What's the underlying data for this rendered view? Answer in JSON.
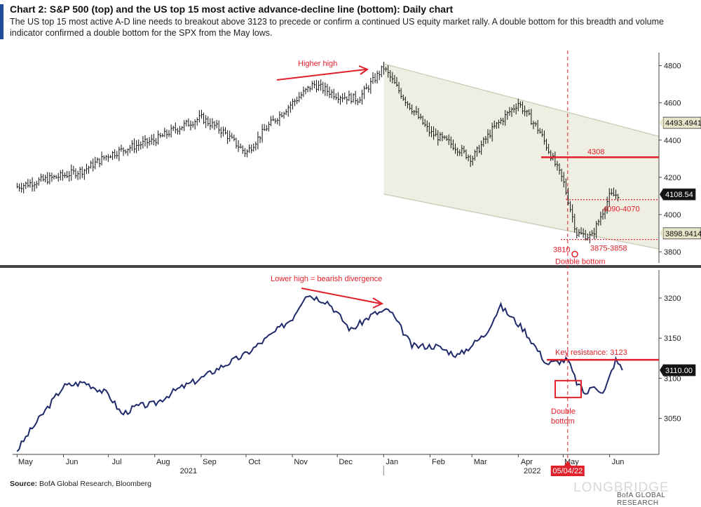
{
  "header": {
    "title": "Chart 2: S&P 500 (top) and the US top 15 most active advance-decline line (bottom): Daily chart",
    "subtitle": "The US top 15 most active A-D line needs to breakout above 3123 to precede or confirm a continued US equity market rally. A double bottom for this breadth and volume indicator confirmed a double bottom for the SPX from the May lows."
  },
  "footer": {
    "source_label": "Source:",
    "source_text": "BofA Global Research, Bloomberg",
    "brand": "BofA GLOBAL RESEARCH",
    "watermark": "LONGBRIDGE"
  },
  "colors": {
    "price_line": "#111111",
    "ad_line": "#1f2a6b",
    "annotation": "#e0202a",
    "channel_fill": "#efeee2",
    "channel_edge": "#c8c8b0",
    "divider": "#444444"
  },
  "chart_data": [
    {
      "type": "line",
      "panel": "top",
      "series_style": "ohlc-bars",
      "y_ticks": [
        3800,
        4000,
        4200,
        4400,
        4600,
        4800
      ],
      "ylim": [
        3740,
        4870
      ],
      "x_months": [
        "May",
        "Jun",
        "Jul",
        "Aug",
        "Sep",
        "Oct",
        "Nov",
        "Dec",
        "Jan",
        "Feb",
        "Mar",
        "Apr",
        "May",
        "Jun"
      ],
      "year_labels": [
        "2021",
        "2022"
      ],
      "x": [
        "2021-05-01",
        "2021-05-15",
        "2021-06-01",
        "2021-06-15",
        "2021-07-01",
        "2021-07-15",
        "2021-08-01",
        "2021-08-15",
        "2021-09-01",
        "2021-09-15",
        "2021-10-01",
        "2021-10-15",
        "2021-11-01",
        "2021-11-15",
        "2021-12-01",
        "2021-12-15",
        "2022-01-01",
        "2022-01-15",
        "2022-02-01",
        "2022-02-15",
        "2022-03-01",
        "2022-03-15",
        "2022-04-01",
        "2022-04-15",
        "2022-05-01",
        "2022-05-10",
        "2022-05-20",
        "2022-06-01",
        "2022-06-08"
      ],
      "values": [
        4150,
        4180,
        4210,
        4240,
        4320,
        4360,
        4400,
        4460,
        4520,
        4450,
        4330,
        4470,
        4600,
        4700,
        4640,
        4620,
        4790,
        4620,
        4440,
        4380,
        4300,
        4460,
        4600,
        4450,
        4180,
        3900,
        3880,
        4100,
        4110
      ],
      "value_labels": {
        "current": "4108.54",
        "channel_upper": "4493.4941",
        "channel_lower": "3898.9414"
      },
      "annotations": {
        "higher_high": "Higher high",
        "level_4308": "4308",
        "zone_4090": "4090-4070",
        "zone_3875": "3875-3858",
        "level_3810": "3810",
        "double_bottom": "Double bottom"
      }
    },
    {
      "type": "line",
      "panel": "bottom",
      "y_ticks": [
        3050,
        3100,
        3150,
        3200
      ],
      "ylim": [
        3005,
        3235
      ],
      "x": [
        "2021-05-01",
        "2021-05-10",
        "2021-05-20",
        "2021-06-01",
        "2021-06-15",
        "2021-07-01",
        "2021-07-10",
        "2021-07-20",
        "2021-08-01",
        "2021-08-15",
        "2021-09-01",
        "2021-09-15",
        "2021-10-01",
        "2021-10-15",
        "2021-11-01",
        "2021-11-10",
        "2021-11-25",
        "2021-12-10",
        "2021-12-25",
        "2022-01-05",
        "2022-01-20",
        "2022-02-05",
        "2022-02-20",
        "2022-03-10",
        "2022-03-20",
        "2022-04-05",
        "2022-04-20",
        "2022-05-04",
        "2022-05-10",
        "2022-05-16",
        "2022-05-22",
        "2022-05-28",
        "2022-06-05",
        "2022-06-10"
      ],
      "values": [
        3010,
        3035,
        3060,
        3090,
        3095,
        3080,
        3055,
        3065,
        3068,
        3085,
        3100,
        3115,
        3130,
        3150,
        3175,
        3205,
        3195,
        3160,
        3180,
        3185,
        3140,
        3140,
        3128,
        3155,
        3190,
        3160,
        3118,
        3123,
        3095,
        3080,
        3092,
        3080,
        3123,
        3110
      ],
      "value_labels": {
        "current": "3110.00"
      },
      "annotations": {
        "bearish": "Lower high = bearish divergence",
        "key_resistance": "Key resistance: 3123",
        "double_bottom": "Double\nbottom",
        "date_marker": "05/04/22"
      }
    }
  ]
}
